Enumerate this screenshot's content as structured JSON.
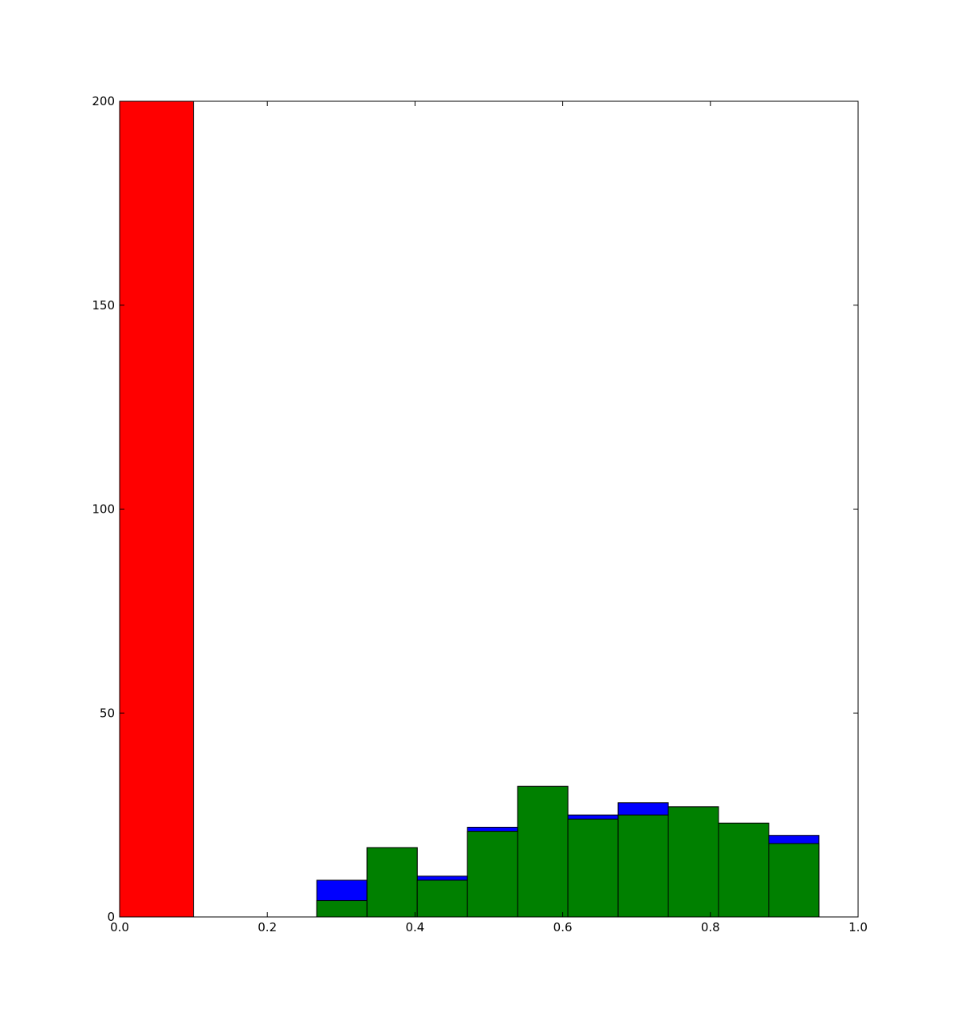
{
  "chart_data": {
    "type": "bar",
    "title": "",
    "xlabel": "",
    "ylabel": "",
    "xlim": [
      0.0,
      1.0
    ],
    "ylim": [
      0,
      200
    ],
    "grid": false,
    "xticks": [
      0.0,
      0.2,
      0.4,
      0.6,
      0.8,
      1.0
    ],
    "xtick_labels": [
      "0.0",
      "0.2",
      "0.4",
      "0.6",
      "0.8",
      "1.0"
    ],
    "yticks": [
      0,
      50,
      100,
      150,
      200
    ],
    "ytick_labels": [
      "0",
      "50",
      "100",
      "150",
      "200"
    ],
    "series": [
      {
        "color": "#ff0000",
        "bins": [
          {
            "x0": 0.0,
            "x1": 0.1,
            "value": 200
          }
        ]
      },
      {
        "color": "#0000ff",
        "bins": [
          {
            "x0": 0.267,
            "x1": 0.335,
            "value": 9
          },
          {
            "x0": 0.335,
            "x1": 0.403,
            "value": 17
          },
          {
            "x0": 0.403,
            "x1": 0.471,
            "value": 10
          },
          {
            "x0": 0.471,
            "x1": 0.539,
            "value": 22
          },
          {
            "x0": 0.539,
            "x1": 0.607,
            "value": 32
          },
          {
            "x0": 0.607,
            "x1": 0.675,
            "value": 25
          },
          {
            "x0": 0.675,
            "x1": 0.743,
            "value": 28
          },
          {
            "x0": 0.743,
            "x1": 0.811,
            "value": 27
          },
          {
            "x0": 0.811,
            "x1": 0.879,
            "value": 23
          },
          {
            "x0": 0.879,
            "x1": 0.947,
            "value": 20
          }
        ]
      },
      {
        "color": "#008000",
        "bins": [
          {
            "x0": 0.267,
            "x1": 0.335,
            "value": 4
          },
          {
            "x0": 0.335,
            "x1": 0.403,
            "value": 17
          },
          {
            "x0": 0.403,
            "x1": 0.471,
            "value": 9
          },
          {
            "x0": 0.471,
            "x1": 0.539,
            "value": 21
          },
          {
            "x0": 0.539,
            "x1": 0.607,
            "value": 32
          },
          {
            "x0": 0.607,
            "x1": 0.675,
            "value": 24
          },
          {
            "x0": 0.675,
            "x1": 0.743,
            "value": 25
          },
          {
            "x0": 0.743,
            "x1": 0.811,
            "value": 27
          },
          {
            "x0": 0.811,
            "x1": 0.879,
            "value": 23
          },
          {
            "x0": 0.879,
            "x1": 0.947,
            "value": 18
          }
        ]
      }
    ]
  }
}
